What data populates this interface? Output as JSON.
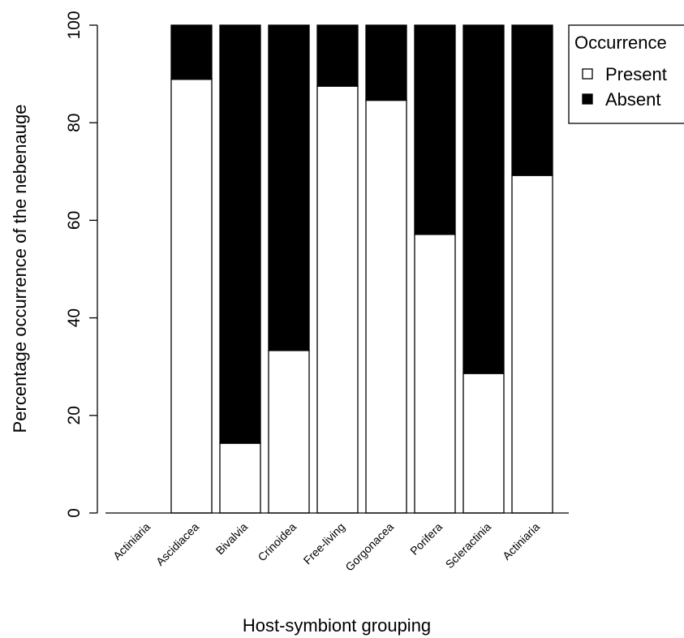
{
  "chart_data": {
    "type": "bar",
    "stacked": true,
    "normalized_percent": true,
    "categories": [
      "Actiniaria",
      "Ascidiacea",
      "Bivalvia",
      "Crinoidea",
      "Free-living",
      "Gorgonacea",
      "Porifera",
      "Scleractinia",
      "Actiniaria"
    ],
    "series": [
      {
        "name": "Present",
        "color": "#ffffff",
        "values": [
          0,
          88.9,
          14.3,
          33.3,
          87.5,
          84.6,
          57.1,
          28.6,
          69.2
        ]
      },
      {
        "name": "Absent",
        "color": "#000000",
        "values": [
          0,
          11.1,
          85.7,
          66.7,
          12.5,
          15.4,
          42.9,
          71.4,
          30.8
        ]
      }
    ],
    "xlabel": "Host-symbiont grouping",
    "ylabel": "Percentage occurrence of the nebenauge",
    "ylim": [
      0,
      100
    ],
    "yticks": [
      0,
      20,
      40,
      60,
      80,
      100
    ],
    "grid": false,
    "legend": {
      "title": "Occurrence",
      "position": "top-right",
      "entries": [
        "Present",
        "Absent"
      ]
    }
  }
}
